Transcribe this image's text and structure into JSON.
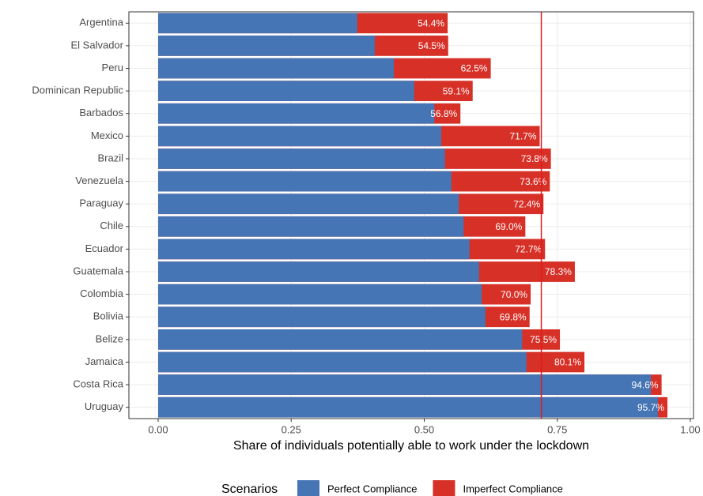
{
  "chart_data": {
    "type": "overlap-bar-h",
    "x_label": "Share of individuals potentially able to work under the lockdown",
    "categories": [
      "Argentina",
      "El Salvador",
      "Peru",
      "Dominican Republic",
      "Barbados",
      "Mexico",
      "Brazil",
      "Venezuela",
      "Paraguay",
      "Chile",
      "Ecuador",
      "Guatemala",
      "Colombia",
      "Bolivia",
      "Belize",
      "Jamaica",
      "Costa Rica",
      "Uruguay"
    ],
    "series": [
      {
        "name": "Imperfect Compliance",
        "color": "#d73027",
        "values": [
          0.544,
          0.545,
          0.625,
          0.591,
          0.568,
          0.717,
          0.738,
          0.736,
          0.724,
          0.69,
          0.727,
          0.783,
          0.7,
          0.698,
          0.755,
          0.801,
          0.946,
          0.957
        ],
        "value_labels": [
          "54.4%",
          "54.5%",
          "62.5%",
          "59.1%",
          "56.8%",
          "71.7%",
          "73.8%",
          "73.6%",
          "72.4%",
          "69.0%",
          "72.7%",
          "78.3%",
          "70.0%",
          "69.8%",
          "75.5%",
          "80.1%",
          "94.6%",
          "95.7%"
        ]
      },
      {
        "name": "Perfect Compliance",
        "color": "#4575b4",
        "values": [
          0.374,
          0.407,
          0.443,
          0.481,
          0.519,
          0.532,
          0.539,
          0.551,
          0.565,
          0.574,
          0.585,
          0.603,
          0.608,
          0.615,
          0.684,
          0.692,
          0.926,
          0.939
        ]
      }
    ],
    "legend_title": "Scenarios",
    "legend_order": [
      1,
      0
    ],
    "reference_line": 0.72,
    "reference_color": "#e31a1c",
    "xlim": [
      -0.055,
      1.006
    ],
    "xticks": [
      {
        "value": 0,
        "label": "0.00"
      },
      0.25,
      {
        "value": 0.5,
        "label": "0.50"
      },
      0.75,
      {
        "value": 1,
        "label": "1.00"
      }
    ],
    "grid": true
  }
}
